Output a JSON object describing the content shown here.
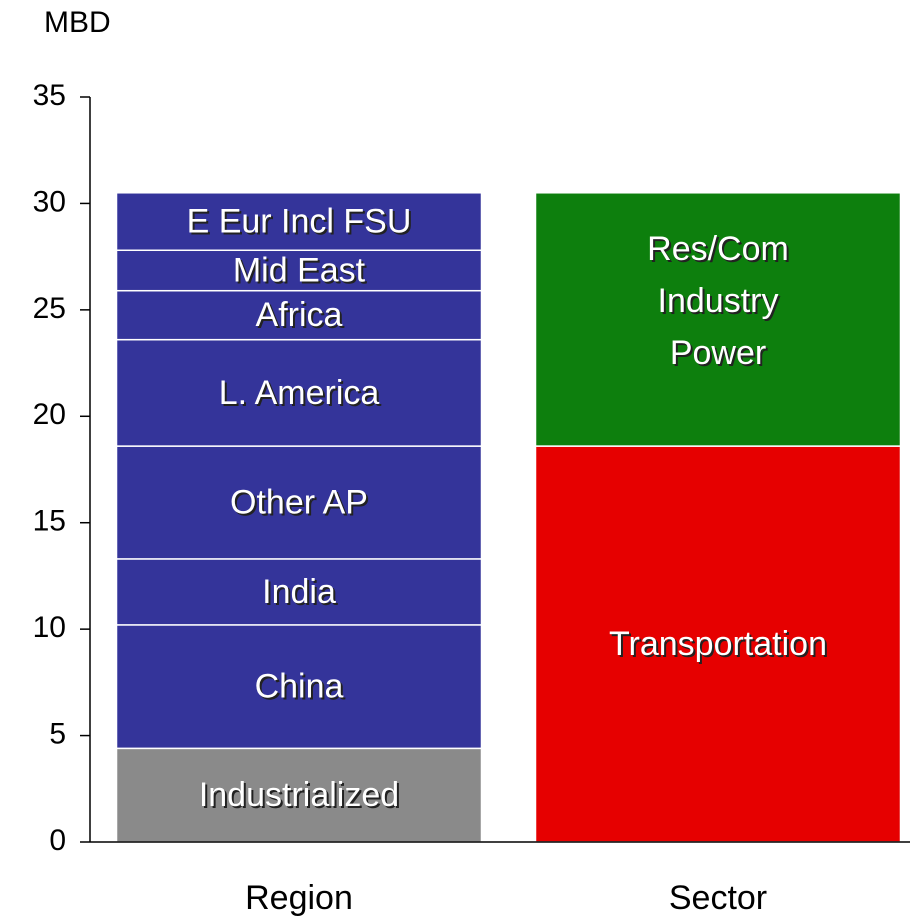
{
  "chart_data": {
    "type": "stacked-bar",
    "y_label": "MBD",
    "categories": [
      "Region",
      "Sector"
    ],
    "series": [
      {
        "name": "Industrialized",
        "color": "#8a8a8a",
        "values": [
          4.4,
          null
        ]
      },
      {
        "name": "China",
        "color": "#34349a",
        "values": [
          5.8,
          null
        ]
      },
      {
        "name": "India",
        "color": "#34349a",
        "values": [
          3.1,
          null
        ]
      },
      {
        "name": "Other AP",
        "color": "#34349a",
        "values": [
          5.3,
          null
        ]
      },
      {
        "name": "L. America",
        "color": "#34349a",
        "values": [
          5.0,
          null
        ]
      },
      {
        "name": "Africa",
        "color": "#34349a",
        "values": [
          2.3,
          null
        ]
      },
      {
        "name": "Mid East",
        "color": "#34349a",
        "values": [
          1.9,
          null
        ]
      },
      {
        "name": "E Eur Incl FSU",
        "color": "#34349a",
        "values": [
          2.7,
          null
        ]
      },
      {
        "name": "Transportation",
        "color": "#e60000",
        "values": [
          null,
          18.6
        ]
      },
      {
        "name": "Res/Com Industry Power",
        "color": "#0d7f0d",
        "values": [
          null,
          11.9
        ]
      }
    ],
    "ylim": [
      0,
      35
    ],
    "yticks": [
      0,
      5,
      10,
      15,
      20,
      25,
      30,
      35
    ],
    "grid": false
  }
}
